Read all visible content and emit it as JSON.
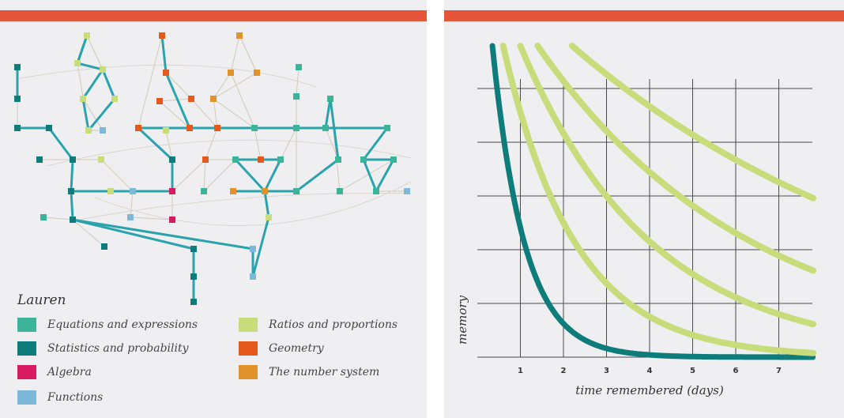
{
  "legend": {
    "title": "Lauren",
    "items": [
      {
        "label": "Equations and expressions",
        "color": "#3bb49a"
      },
      {
        "label": "Statistics and probability",
        "color": "#0e7c7b"
      },
      {
        "label": "Algebra",
        "color": "#d81b60"
      },
      {
        "label": "Functions",
        "color": "#7eb8d8"
      },
      {
        "label": "Ratios and proportions",
        "color": "#c9dc7c"
      },
      {
        "label": "Geometry",
        "color": "#e5591d"
      },
      {
        "label": "The number system",
        "color": "#e0922b"
      }
    ]
  },
  "chart_data": {
    "type": "line",
    "xlabel": "time remembered (days)",
    "ylabel": "memory",
    "x_ticks": [
      "1",
      "2",
      "3",
      "4",
      "5",
      "6",
      "7"
    ],
    "xlim": [
      0,
      8
    ],
    "ylim": [
      0,
      1
    ],
    "grid": true,
    "series": [
      {
        "color": "#0e7c7b",
        "start_day": 0.35,
        "decay_rate": 1.35
      },
      {
        "color": "#c9dc7c",
        "start_day": 0.6,
        "decay_rate": 0.6
      },
      {
        "color": "#c9dc7c",
        "start_day": 1.0,
        "decay_rate": 0.33
      },
      {
        "color": "#c9dc7c",
        "start_day": 1.4,
        "decay_rate": 0.2
      },
      {
        "color": "#c9dc7c",
        "start_day": 2.2,
        "decay_rate": 0.12
      }
    ]
  },
  "network": {
    "edge_color": "#2aa3ad"
  }
}
